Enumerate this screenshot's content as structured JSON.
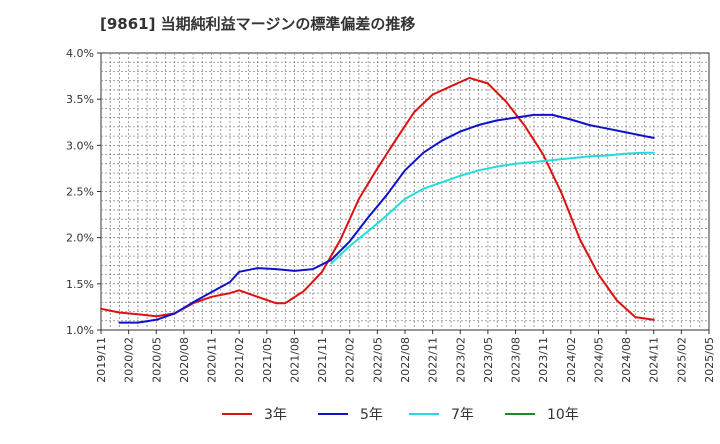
{
  "chart_data": {
    "type": "line",
    "title": "[9861]  当期純利益マージンの標準偏差の推移",
    "xlabel": "",
    "ylabel": "",
    "ylim": [
      1.0,
      4.0
    ],
    "yticks": [
      "1.0%",
      "1.5%",
      "2.0%",
      "2.5%",
      "3.0%",
      "3.5%",
      "4.0%"
    ],
    "xticks": [
      "2019/11",
      "2020/02",
      "2020/05",
      "2020/08",
      "2020/11",
      "2021/02",
      "2021/05",
      "2021/08",
      "2021/11",
      "2022/02",
      "2022/05",
      "2022/08",
      "2022/11",
      "2023/02",
      "2023/05",
      "2023/08",
      "2023/11",
      "2024/02",
      "2024/05",
      "2024/08",
      "2024/11",
      "2025/02",
      "2025/05"
    ],
    "grid": true,
    "legend_position": "bottom",
    "series": [
      {
        "name": "3年",
        "color": "#dd1111",
        "values": [
          {
            "x": "2019/11",
            "y": 1.23
          },
          {
            "x": "2020/01",
            "y": 1.19
          },
          {
            "x": "2020/03",
            "y": 1.17
          },
          {
            "x": "2020/05",
            "y": 1.15
          },
          {
            "x": "2020/07",
            "y": 1.18
          },
          {
            "x": "2020/09",
            "y": 1.29
          },
          {
            "x": "2020/11",
            "y": 1.36
          },
          {
            "x": "2021/01",
            "y": 1.4
          },
          {
            "x": "2021/02",
            "y": 1.43
          },
          {
            "x": "2021/04",
            "y": 1.36
          },
          {
            "x": "2021/06",
            "y": 1.29
          },
          {
            "x": "2021/07",
            "y": 1.29
          },
          {
            "x": "2021/09",
            "y": 1.42
          },
          {
            "x": "2021/11",
            "y": 1.63
          },
          {
            "x": "2022/01",
            "y": 1.98
          },
          {
            "x": "2022/03",
            "y": 2.42
          },
          {
            "x": "2022/05",
            "y": 2.75
          },
          {
            "x": "2022/07",
            "y": 3.06
          },
          {
            "x": "2022/09",
            "y": 3.36
          },
          {
            "x": "2022/11",
            "y": 3.55
          },
          {
            "x": "2023/01",
            "y": 3.64
          },
          {
            "x": "2023/03",
            "y": 3.73
          },
          {
            "x": "2023/05",
            "y": 3.67
          },
          {
            "x": "2023/07",
            "y": 3.47
          },
          {
            "x": "2023/09",
            "y": 3.21
          },
          {
            "x": "2023/11",
            "y": 2.9
          },
          {
            "x": "2024/01",
            "y": 2.48
          },
          {
            "x": "2024/03",
            "y": 1.98
          },
          {
            "x": "2024/05",
            "y": 1.6
          },
          {
            "x": "2024/07",
            "y": 1.32
          },
          {
            "x": "2024/09",
            "y": 1.14
          },
          {
            "x": "2024/11",
            "y": 1.11
          }
        ]
      },
      {
        "name": "5年",
        "color": "#1111cc",
        "values": [
          {
            "x": "2020/01",
            "y": 1.08
          },
          {
            "x": "2020/03",
            "y": 1.08
          },
          {
            "x": "2020/05",
            "y": 1.11
          },
          {
            "x": "2020/07",
            "y": 1.18
          },
          {
            "x": "2020/09",
            "y": 1.3
          },
          {
            "x": "2020/11",
            "y": 1.41
          },
          {
            "x": "2021/01",
            "y": 1.52
          },
          {
            "x": "2021/02",
            "y": 1.63
          },
          {
            "x": "2021/04",
            "y": 1.67
          },
          {
            "x": "2021/06",
            "y": 1.66
          },
          {
            "x": "2021/08",
            "y": 1.64
          },
          {
            "x": "2021/10",
            "y": 1.66
          },
          {
            "x": "2021/12",
            "y": 1.76
          },
          {
            "x": "2022/02",
            "y": 1.96
          },
          {
            "x": "2022/04",
            "y": 2.22
          },
          {
            "x": "2022/06",
            "y": 2.46
          },
          {
            "x": "2022/08",
            "y": 2.73
          },
          {
            "x": "2022/10",
            "y": 2.92
          },
          {
            "x": "2022/12",
            "y": 3.05
          },
          {
            "x": "2023/02",
            "y": 3.15
          },
          {
            "x": "2023/04",
            "y": 3.22
          },
          {
            "x": "2023/06",
            "y": 3.27
          },
          {
            "x": "2023/08",
            "y": 3.3
          },
          {
            "x": "2023/10",
            "y": 3.33
          },
          {
            "x": "2023/12",
            "y": 3.33
          },
          {
            "x": "2024/02",
            "y": 3.28
          },
          {
            "x": "2024/04",
            "y": 3.22
          },
          {
            "x": "2024/06",
            "y": 3.18
          },
          {
            "x": "2024/08",
            "y": 3.14
          },
          {
            "x": "2024/10",
            "y": 3.1
          },
          {
            "x": "2024/11",
            "y": 3.08
          }
        ]
      },
      {
        "name": "7年",
        "color": "#22dddd",
        "values": [
          {
            "x": "2021/12",
            "y": 1.72
          },
          {
            "x": "2022/02",
            "y": 1.91
          },
          {
            "x": "2022/04",
            "y": 2.07
          },
          {
            "x": "2022/06",
            "y": 2.24
          },
          {
            "x": "2022/08",
            "y": 2.42
          },
          {
            "x": "2022/10",
            "y": 2.53
          },
          {
            "x": "2022/12",
            "y": 2.6
          },
          {
            "x": "2023/02",
            "y": 2.67
          },
          {
            "x": "2023/04",
            "y": 2.73
          },
          {
            "x": "2023/06",
            "y": 2.77
          },
          {
            "x": "2023/08",
            "y": 2.8
          },
          {
            "x": "2023/10",
            "y": 2.82
          },
          {
            "x": "2023/12",
            "y": 2.84
          },
          {
            "x": "2024/02",
            "y": 2.86
          },
          {
            "x": "2024/04",
            "y": 2.88
          },
          {
            "x": "2024/06",
            "y": 2.89
          },
          {
            "x": "2024/08",
            "y": 2.91
          },
          {
            "x": "2024/10",
            "y": 2.92
          },
          {
            "x": "2024/11",
            "y": 2.92
          }
        ]
      },
      {
        "name": "10年",
        "color": "#228822",
        "values": []
      }
    ]
  }
}
